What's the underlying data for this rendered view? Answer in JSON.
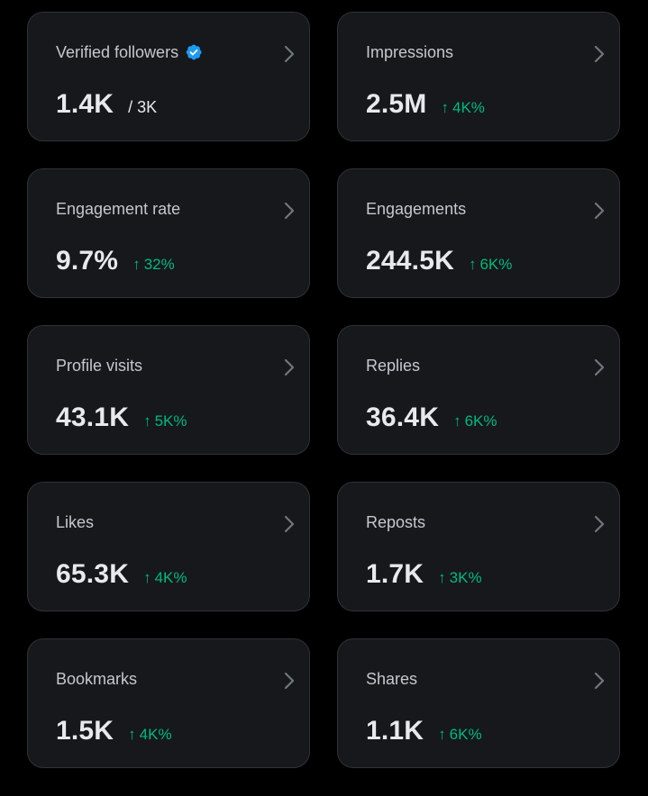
{
  "colors": {
    "background": "#000000",
    "card": "#16181c",
    "border": "#2f3336",
    "label": "#c4c8cc",
    "value": "#e7e9ea",
    "positive": "#00ba7c",
    "verified": "#1d9bf0"
  },
  "cards": [
    {
      "label": "Verified followers",
      "value": "1.4K",
      "total": "/ 3K",
      "icon": "verified-badge-icon"
    },
    {
      "label": "Impressions",
      "value": "2.5M",
      "arrow": "↑",
      "change": "4K%"
    },
    {
      "label": "Engagement rate",
      "value": "9.7%",
      "arrow": "↑",
      "change": "32%"
    },
    {
      "label": "Engagements",
      "value": "244.5K",
      "arrow": "↑",
      "change": "6K%"
    },
    {
      "label": "Profile visits",
      "value": "43.1K",
      "arrow": "↑",
      "change": "5K%"
    },
    {
      "label": "Replies",
      "value": "36.4K",
      "arrow": "↑",
      "change": "6K%"
    },
    {
      "label": "Likes",
      "value": "65.3K",
      "arrow": "↑",
      "change": "4K%"
    },
    {
      "label": "Reposts",
      "value": "1.7K",
      "arrow": "↑",
      "change": "3K%"
    },
    {
      "label": "Bookmarks",
      "value": "1.5K",
      "arrow": "↑",
      "change": "4K%"
    },
    {
      "label": "Shares",
      "value": "1.1K",
      "arrow": "↑",
      "change": "6K%"
    }
  ]
}
